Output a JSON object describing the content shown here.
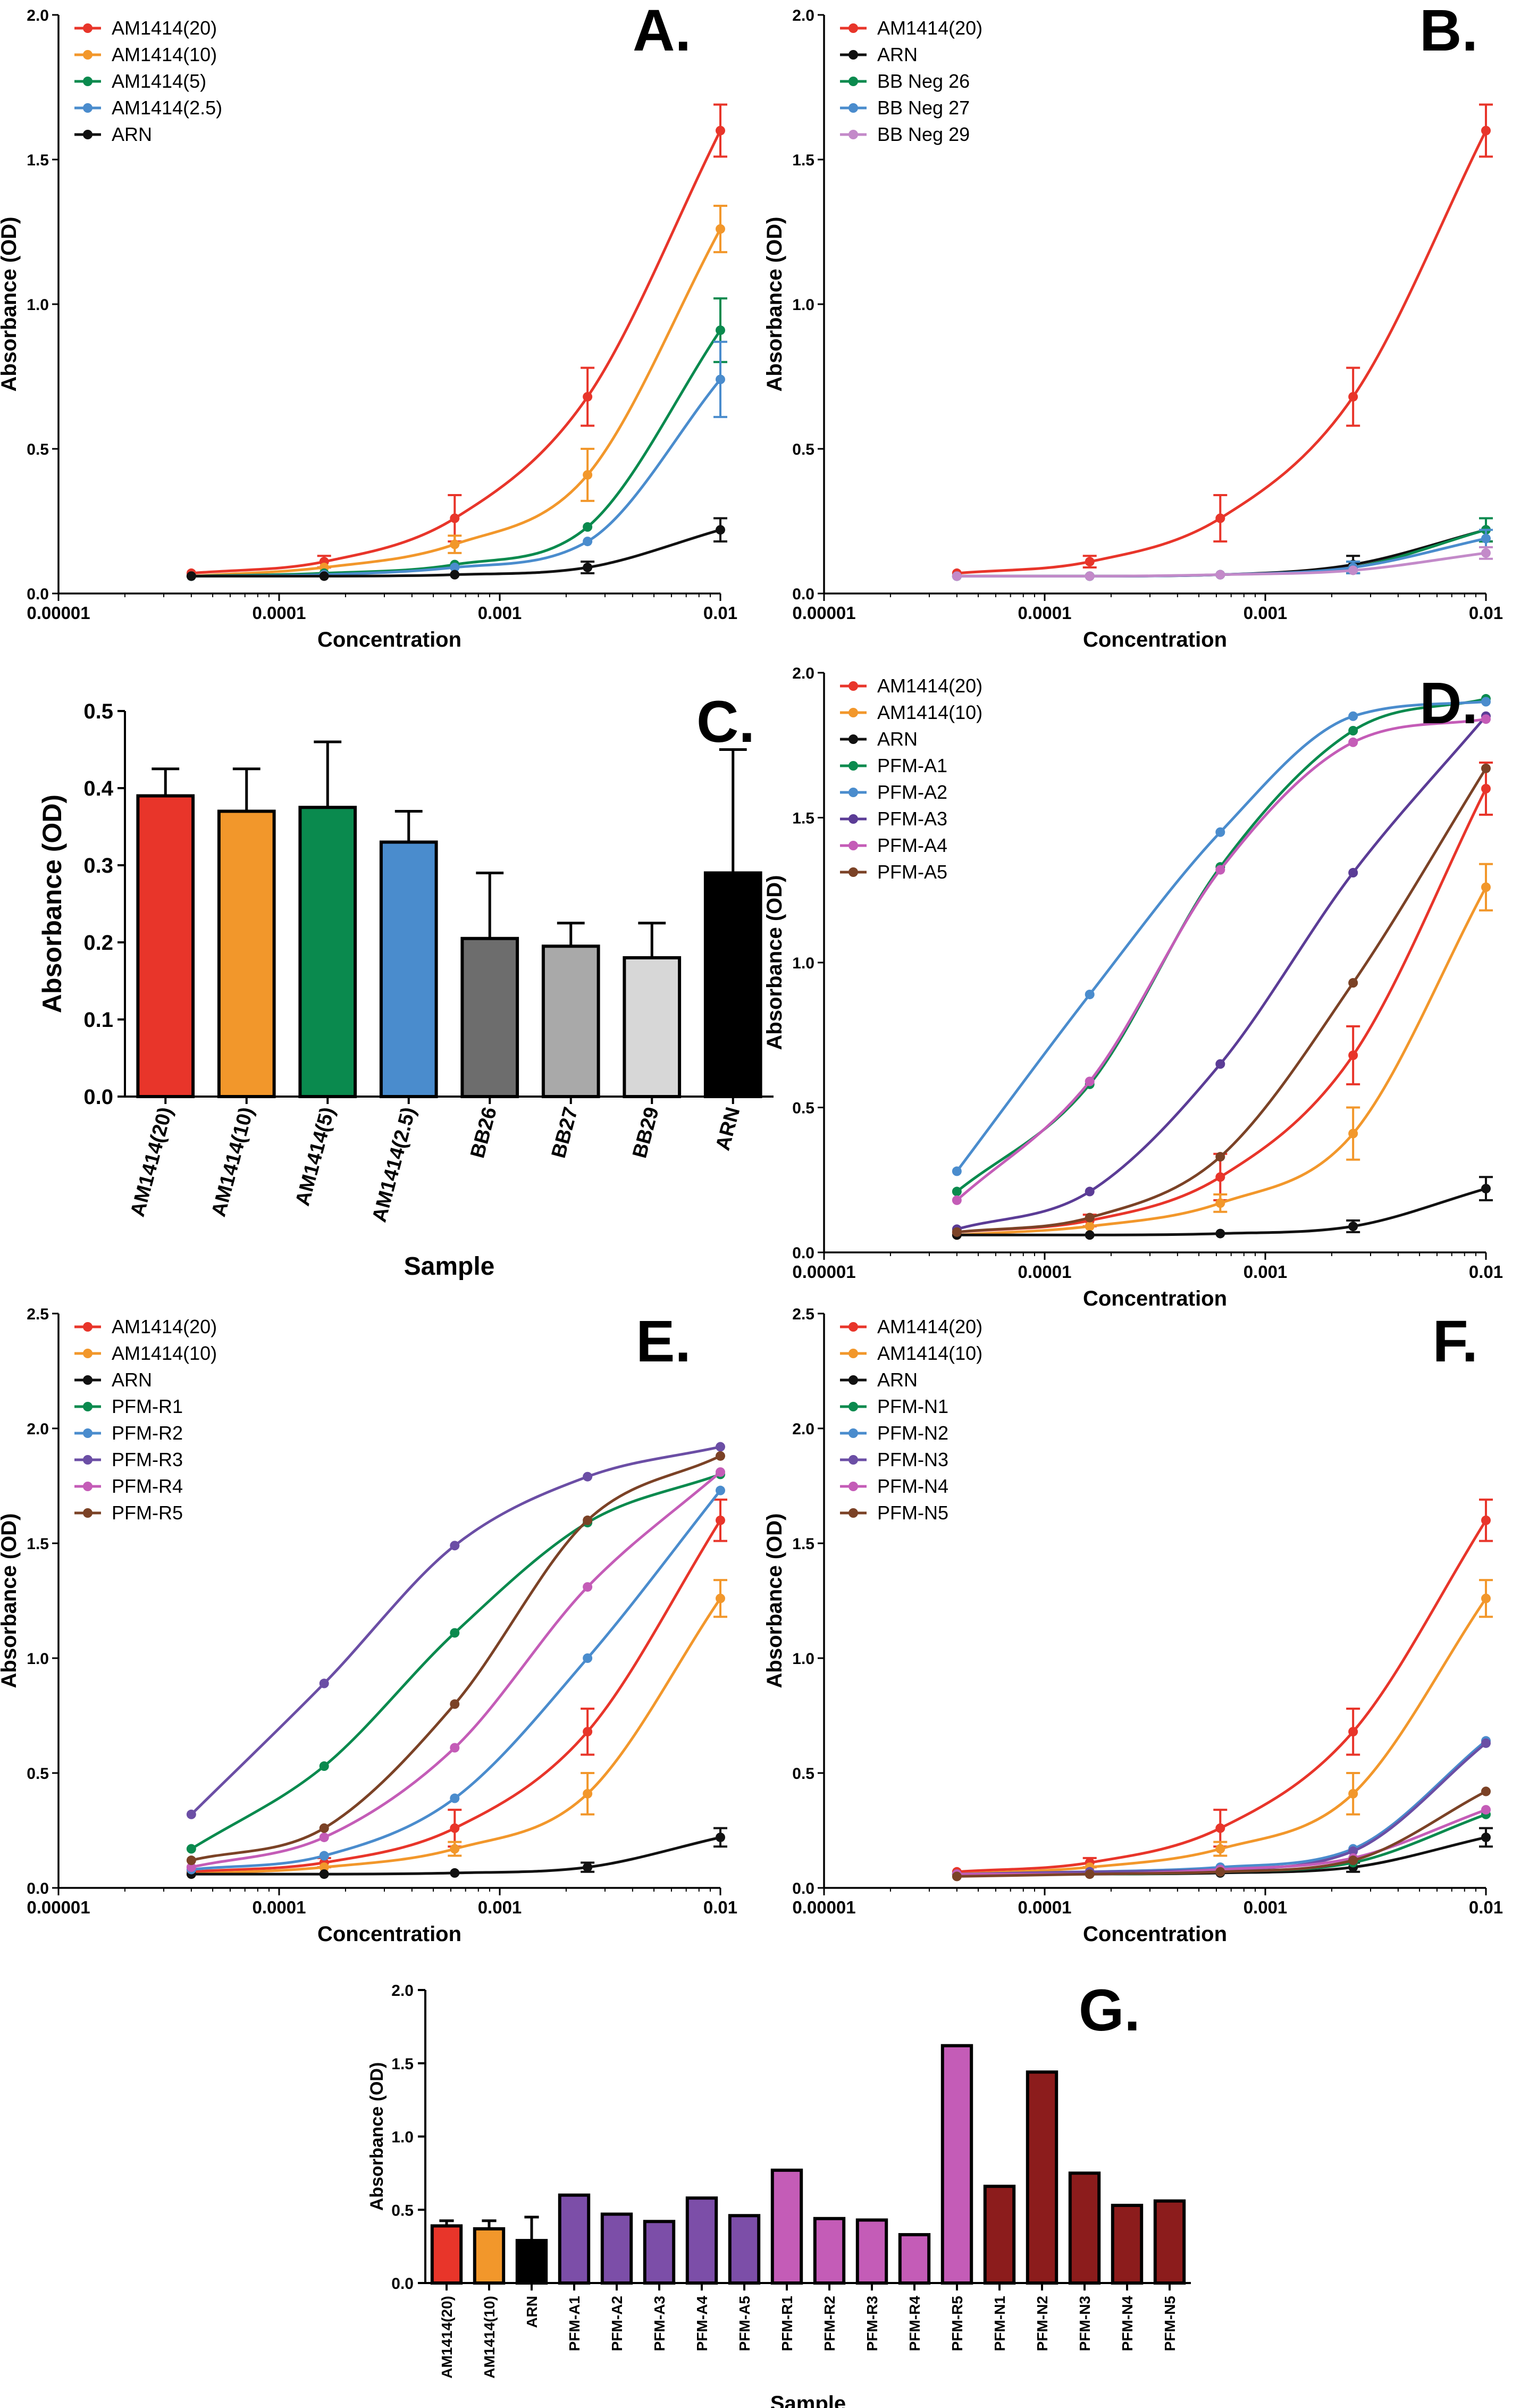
{
  "colors": {
    "AM1414(20)": "#e8352a",
    "AM1414(10)": "#f2972b",
    "AM1414(5)": "#0a8a4e",
    "AM1414(2.5)": "#4a8ccd",
    "ARN": "#111111",
    "BB Neg 26": "#0a8a4e",
    "BB Neg 27": "#4a8ccd",
    "BB Neg 29": "#c38ac9",
    "PFM-A1": "#0a8a4e",
    "PFM-A2": "#4a8ccd",
    "PFM-A3": "#5b3c96",
    "PFM-A4": "#c45cb7",
    "PFM-A5": "#7b4226",
    "PFM-R1": "#0a8a4e",
    "PFM-R2": "#4a8ccd",
    "PFM-R3": "#6b4ea5",
    "PFM-R4": "#c45cb7",
    "PFM-R5": "#7b4226",
    "PFM-N1": "#0a8a4e",
    "PFM-N2": "#4a8ccd",
    "PFM-N3": "#6b4ea5",
    "PFM-N4": "#c45cb7",
    "PFM-N5": "#7b4226"
  },
  "chart_data": [
    {
      "panel": "A.",
      "type": "line",
      "xscale": "log",
      "xlabel": "Concentration",
      "ylabel": "Absorbance (OD)",
      "xticks": [
        "0.00001",
        "0.0001",
        "0.001",
        "0.01"
      ],
      "yticks": [
        "0.0",
        "0.5",
        "1.0",
        "1.5",
        "2.0"
      ],
      "ylim": [
        0,
        2.0
      ],
      "x": [
        4e-05,
        0.00016,
        0.000625,
        0.0025,
        0.01
      ],
      "legend_position": "top-left",
      "series": [
        {
          "name": "AM1414(20)",
          "values": [
            0.07,
            0.11,
            0.26,
            0.68,
            1.6
          ],
          "error": [
            0.01,
            0.02,
            0.08,
            0.1,
            0.09
          ]
        },
        {
          "name": "AM1414(10)",
          "values": [
            0.06,
            0.09,
            0.17,
            0.41,
            1.26
          ],
          "error": [
            0.01,
            0.01,
            0.03,
            0.09,
            0.08
          ]
        },
        {
          "name": "AM1414(5)",
          "values": [
            0.06,
            0.07,
            0.1,
            0.23,
            0.91
          ],
          "error": [
            0.005,
            0.005,
            0.01,
            0.01,
            0.11
          ]
        },
        {
          "name": "AM1414(2.5)",
          "values": [
            0.06,
            0.065,
            0.09,
            0.18,
            0.74
          ],
          "error": [
            0.005,
            0.005,
            0.01,
            0.01,
            0.13
          ]
        },
        {
          "name": "ARN",
          "values": [
            0.06,
            0.06,
            0.065,
            0.09,
            0.22
          ],
          "error": [
            0.005,
            0.005,
            0.005,
            0.02,
            0.04
          ]
        }
      ]
    },
    {
      "panel": "B.",
      "type": "line",
      "xscale": "log",
      "xlabel": "Concentration",
      "ylabel": "Absorbance (OD)",
      "xticks": [
        "0.00001",
        "0.0001",
        "0.001",
        "0.01"
      ],
      "yticks": [
        "0.0",
        "0.5",
        "1.0",
        "1.5",
        "2.0"
      ],
      "ylim": [
        0,
        2.0
      ],
      "x": [
        4e-05,
        0.00016,
        0.000625,
        0.0025,
        0.01
      ],
      "legend_position": "top-left",
      "series": [
        {
          "name": "AM1414(20)",
          "values": [
            0.07,
            0.11,
            0.26,
            0.68,
            1.6
          ],
          "error": [
            0.01,
            0.02,
            0.08,
            0.1,
            0.09
          ]
        },
        {
          "name": "ARN",
          "values": [
            0.06,
            0.06,
            0.065,
            0.1,
            0.22
          ],
          "error": [
            0.005,
            0.005,
            0.005,
            0.03,
            0.04
          ]
        },
        {
          "name": "BB Neg 26",
          "values": [
            0.06,
            0.06,
            0.065,
            0.09,
            0.22
          ],
          "error": [
            0.005,
            0.005,
            0.005,
            0.02,
            0.04
          ]
        },
        {
          "name": "BB Neg 27",
          "values": [
            0.06,
            0.06,
            0.065,
            0.09,
            0.19
          ],
          "error": [
            0.005,
            0.005,
            0.005,
            0.02,
            0.03
          ]
        },
        {
          "name": "BB Neg 29",
          "values": [
            0.06,
            0.06,
            0.065,
            0.08,
            0.14
          ],
          "error": [
            0.005,
            0.005,
            0.005,
            0.01,
            0.02
          ]
        }
      ]
    },
    {
      "panel": "C.",
      "type": "bar",
      "xlabel": "Sample",
      "ylabel": "Absorbance (OD)",
      "yticks": [
        "0.0",
        "0.1",
        "0.2",
        "0.3",
        "0.4",
        "0.5"
      ],
      "ylim": [
        0,
        0.5
      ],
      "categories": [
        "AM1414(20)",
        "AM1414(10)",
        "AM1414(5)",
        "AM1414(2.5)",
        "BB26",
        "BB27",
        "BB29",
        "ARN"
      ],
      "values": [
        0.39,
        0.37,
        0.375,
        0.33,
        0.205,
        0.195,
        0.18,
        0.29
      ],
      "error": [
        0.035,
        0.055,
        0.085,
        0.04,
        0.085,
        0.03,
        0.045,
        0.16
      ],
      "bar_colors": [
        "#e8352a",
        "#f2972b",
        "#0a8a4e",
        "#4a8ccd",
        "#6d6d6d",
        "#a9a9a9",
        "#d7d7d7",
        "#000000"
      ]
    },
    {
      "panel": "D.",
      "type": "line",
      "xscale": "log",
      "xlabel": "Concentration",
      "ylabel": "Absorbance (OD)",
      "xticks": [
        "0.00001",
        "0.0001",
        "0.001",
        "0.01"
      ],
      "yticks": [
        "0.0",
        "0.5",
        "1.0",
        "1.5",
        "2.0"
      ],
      "ylim": [
        0,
        2.0
      ],
      "x": [
        4e-05,
        0.00016,
        0.000625,
        0.0025,
        0.01
      ],
      "legend_position": "top-left",
      "series": [
        {
          "name": "AM1414(20)",
          "values": [
            0.07,
            0.11,
            0.26,
            0.68,
            1.6
          ],
          "error": [
            0.01,
            0.02,
            0.08,
            0.1,
            0.09
          ]
        },
        {
          "name": "AM1414(10)",
          "values": [
            0.06,
            0.09,
            0.17,
            0.41,
            1.26
          ],
          "error": [
            0.01,
            0.01,
            0.03,
            0.09,
            0.08
          ]
        },
        {
          "name": "ARN",
          "values": [
            0.06,
            0.06,
            0.065,
            0.09,
            0.22
          ],
          "error": [
            0.005,
            0.005,
            0.005,
            0.02,
            0.04
          ]
        },
        {
          "name": "PFM-A1",
          "values": [
            0.21,
            0.58,
            1.33,
            1.8,
            1.91
          ],
          "error": []
        },
        {
          "name": "PFM-A2",
          "values": [
            0.28,
            0.89,
            1.45,
            1.85,
            1.9
          ],
          "error": []
        },
        {
          "name": "PFM-A3",
          "values": [
            0.08,
            0.21,
            0.65,
            1.31,
            1.85
          ],
          "error": []
        },
        {
          "name": "PFM-A4",
          "values": [
            0.18,
            0.59,
            1.32,
            1.76,
            1.84
          ],
          "error": []
        },
        {
          "name": "PFM-A5",
          "values": [
            0.07,
            0.12,
            0.33,
            0.93,
            1.67
          ],
          "error": []
        }
      ]
    },
    {
      "panel": "E.",
      "type": "line",
      "xscale": "log",
      "xlabel": "Concentration",
      "ylabel": "Absorbance (OD)",
      "xticks": [
        "0.00001",
        "0.0001",
        "0.001",
        "0.01"
      ],
      "yticks": [
        "0.0",
        "0.5",
        "1.0",
        "1.5",
        "2.0",
        "2.5"
      ],
      "ylim": [
        0,
        2.5
      ],
      "x": [
        4e-05,
        0.00016,
        0.000625,
        0.0025,
        0.01
      ],
      "legend_position": "top-left",
      "series": [
        {
          "name": "AM1414(20)",
          "values": [
            0.07,
            0.11,
            0.26,
            0.68,
            1.6
          ],
          "error": [
            0.01,
            0.02,
            0.08,
            0.1,
            0.09
          ]
        },
        {
          "name": "AM1414(10)",
          "values": [
            0.06,
            0.09,
            0.17,
            0.41,
            1.26
          ],
          "error": [
            0.01,
            0.01,
            0.03,
            0.09,
            0.08
          ]
        },
        {
          "name": "ARN",
          "values": [
            0.06,
            0.06,
            0.065,
            0.09,
            0.22
          ],
          "error": [
            0.005,
            0.005,
            0.005,
            0.02,
            0.04
          ]
        },
        {
          "name": "PFM-R1",
          "values": [
            0.17,
            0.53,
            1.11,
            1.59,
            1.8
          ],
          "error": []
        },
        {
          "name": "PFM-R2",
          "values": [
            0.08,
            0.14,
            0.39,
            1.0,
            1.73
          ],
          "error": []
        },
        {
          "name": "PFM-R3",
          "values": [
            0.32,
            0.89,
            1.49,
            1.79,
            1.92
          ],
          "error": []
        },
        {
          "name": "PFM-R4",
          "values": [
            0.09,
            0.22,
            0.61,
            1.31,
            1.81
          ],
          "error": []
        },
        {
          "name": "PFM-R5",
          "values": [
            0.12,
            0.26,
            0.8,
            1.6,
            1.88
          ],
          "error": []
        }
      ]
    },
    {
      "panel": "F.",
      "type": "line",
      "xscale": "log",
      "xlabel": "Concentration",
      "ylabel": "Absorbance (OD)",
      "xticks": [
        "0.00001",
        "0.0001",
        "0.001",
        "0.01"
      ],
      "yticks": [
        "0.0",
        "0.5",
        "1.0",
        "1.5",
        "2.0",
        "2.5"
      ],
      "ylim": [
        0,
        2.5
      ],
      "x": [
        4e-05,
        0.00016,
        0.000625,
        0.0025,
        0.01
      ],
      "legend_position": "top-left",
      "series": [
        {
          "name": "AM1414(20)",
          "values": [
            0.07,
            0.11,
            0.26,
            0.68,
            1.6
          ],
          "error": [
            0.01,
            0.02,
            0.08,
            0.1,
            0.09
          ]
        },
        {
          "name": "AM1414(10)",
          "values": [
            0.06,
            0.09,
            0.17,
            0.41,
            1.26
          ],
          "error": [
            0.01,
            0.01,
            0.03,
            0.09,
            0.08
          ]
        },
        {
          "name": "ARN",
          "values": [
            0.06,
            0.06,
            0.065,
            0.09,
            0.22
          ],
          "error": [
            0.005,
            0.005,
            0.005,
            0.02,
            0.04
          ]
        },
        {
          "name": "PFM-N1",
          "values": [
            0.06,
            0.06,
            0.07,
            0.11,
            0.32
          ],
          "error": []
        },
        {
          "name": "PFM-N2",
          "values": [
            0.06,
            0.07,
            0.09,
            0.17,
            0.64
          ],
          "error": []
        },
        {
          "name": "PFM-N3",
          "values": [
            0.06,
            0.07,
            0.08,
            0.16,
            0.63
          ],
          "error": []
        },
        {
          "name": "PFM-N4",
          "values": [
            0.06,
            0.06,
            0.08,
            0.13,
            0.34
          ],
          "error": []
        },
        {
          "name": "PFM-N5",
          "values": [
            0.05,
            0.06,
            0.07,
            0.12,
            0.42
          ],
          "error": []
        }
      ]
    },
    {
      "panel": "G.",
      "type": "bar",
      "xlabel": "Sample",
      "ylabel": "Absorbance (OD)",
      "yticks": [
        "0.0",
        "0.5",
        "1.0",
        "1.5",
        "2.0"
      ],
      "ylim": [
        0,
        2.0
      ],
      "categories": [
        "AM1414(20)",
        "AM1414(10)",
        "ARN",
        "PFM-A1",
        "PFM-A2",
        "PFM-A3",
        "PFM-A4",
        "PFM-A5",
        "PFM-R1",
        "PFM-R2",
        "PFM-R3",
        "PFM-R4",
        "PFM-R5",
        "PFM-N1",
        "PFM-N2",
        "PFM-N3",
        "PFM-N4",
        "PFM-N5"
      ],
      "values": [
        0.39,
        0.37,
        0.29,
        0.6,
        0.47,
        0.42,
        0.58,
        0.46,
        0.77,
        0.44,
        0.43,
        0.33,
        1.62,
        0.66,
        1.44,
        0.75,
        0.53,
        0.56
      ],
      "error": [
        0.035,
        0.055,
        0.16,
        0,
        0,
        0,
        0,
        0,
        0,
        0,
        0,
        0,
        0,
        0,
        0,
        0,
        0,
        0
      ],
      "bar_colors": [
        "#e8352a",
        "#f2972b",
        "#000000",
        "#7c4ea8",
        "#7c4ea8",
        "#7c4ea8",
        "#7c4ea8",
        "#7c4ea8",
        "#c45cb7",
        "#c45cb7",
        "#c45cb7",
        "#c45cb7",
        "#c45cb7",
        "#8c1c1c",
        "#8c1c1c",
        "#8c1c1c",
        "#8c1c1c",
        "#8c1c1c"
      ]
    }
  ]
}
